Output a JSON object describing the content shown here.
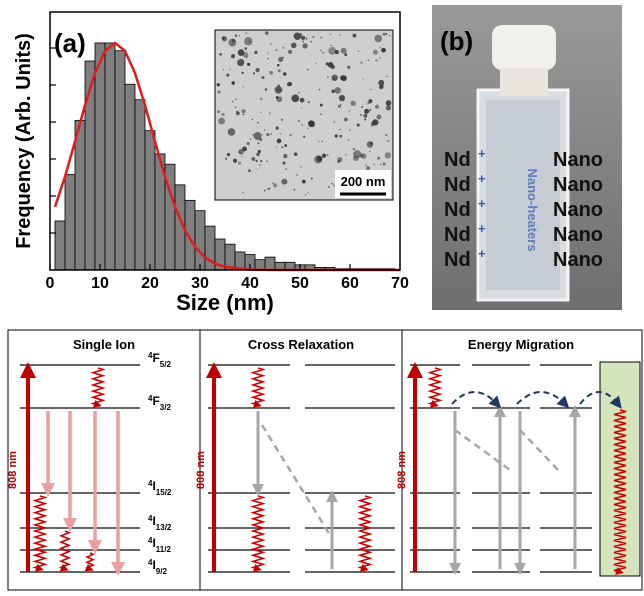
{
  "chart_data": {
    "type": "histogram",
    "panel_label": "(a)",
    "xlabel": "Size (nm)",
    "ylabel": "Frequency (Arb. Units)",
    "bins": [
      1,
      3,
      5,
      7,
      9,
      11,
      13,
      15,
      17,
      19,
      21,
      23,
      25,
      27,
      29,
      31,
      33,
      35,
      37,
      39,
      41,
      43,
      45,
      47,
      49,
      51,
      53,
      55,
      57,
      59,
      61,
      63,
      65,
      67,
      69
    ],
    "values": [
      19,
      37,
      58,
      81,
      88,
      88,
      85,
      72,
      66,
      54,
      45,
      41,
      33,
      27,
      23,
      17,
      12,
      10,
      7,
      6,
      4,
      5,
      3,
      3,
      2,
      2,
      1,
      1,
      0.5,
      0.5,
      0.5,
      0.5,
      0.5,
      0.5
    ],
    "color": "#7f7f7f",
    "fit_curve": {
      "color": "#e31a1c",
      "x": [
        1,
        3,
        5,
        7,
        9,
        11,
        13,
        15,
        17,
        19,
        21,
        23,
        25,
        27,
        29,
        31,
        33,
        35,
        40,
        45,
        50,
        60,
        70
      ],
      "values": [
        24.5,
        36.2,
        49.8,
        63.9,
        76.3,
        84.9,
        88,
        84.9,
        76.3,
        63.9,
        49.8,
        36.2,
        24.5,
        15.4,
        9.0,
        4.9,
        2.5,
        1.2,
        0.1,
        0,
        0,
        0,
        0
      ]
    },
    "xlim": [
      0,
      70
    ],
    "xticks": [
      0,
      10,
      20,
      30,
      40,
      50,
      60,
      70
    ],
    "ylim": [
      0,
      100
    ],
    "inset_scale_bar": "200 nm"
  },
  "panel_b": {
    "label": "(b)",
    "vertical_text": "Nano-heaters",
    "rows": [
      {
        "left": "Nd",
        "sup": "+",
        "right": "Nano"
      },
      {
        "left": "Nd",
        "sup": "+",
        "right": "Nano"
      },
      {
        "left": "Nd",
        "sup": "+",
        "right": "Nano"
      },
      {
        "left": "Nd",
        "sup": "+",
        "right": "Nano"
      },
      {
        "left": "Nd",
        "sup": "+",
        "right": "Nano"
      }
    ]
  },
  "diagrams": {
    "titles": [
      "Single Ion",
      "Cross Relaxation",
      "Energy Migration"
    ],
    "pump_label": "808 nm",
    "levels": [
      {
        "sup": "4",
        "main": "F",
        "sub": "5/2"
      },
      {
        "sup": "4",
        "main": "F",
        "sub": "3/2"
      },
      {
        "sup": "4",
        "main": "I",
        "sub": "15/2"
      },
      {
        "sup": "4",
        "main": "I",
        "sub": "13/2"
      },
      {
        "sup": "4",
        "main": "I",
        "sub": "11/2"
      },
      {
        "sup": "4",
        "main": "I",
        "sub": "9/2"
      }
    ]
  }
}
